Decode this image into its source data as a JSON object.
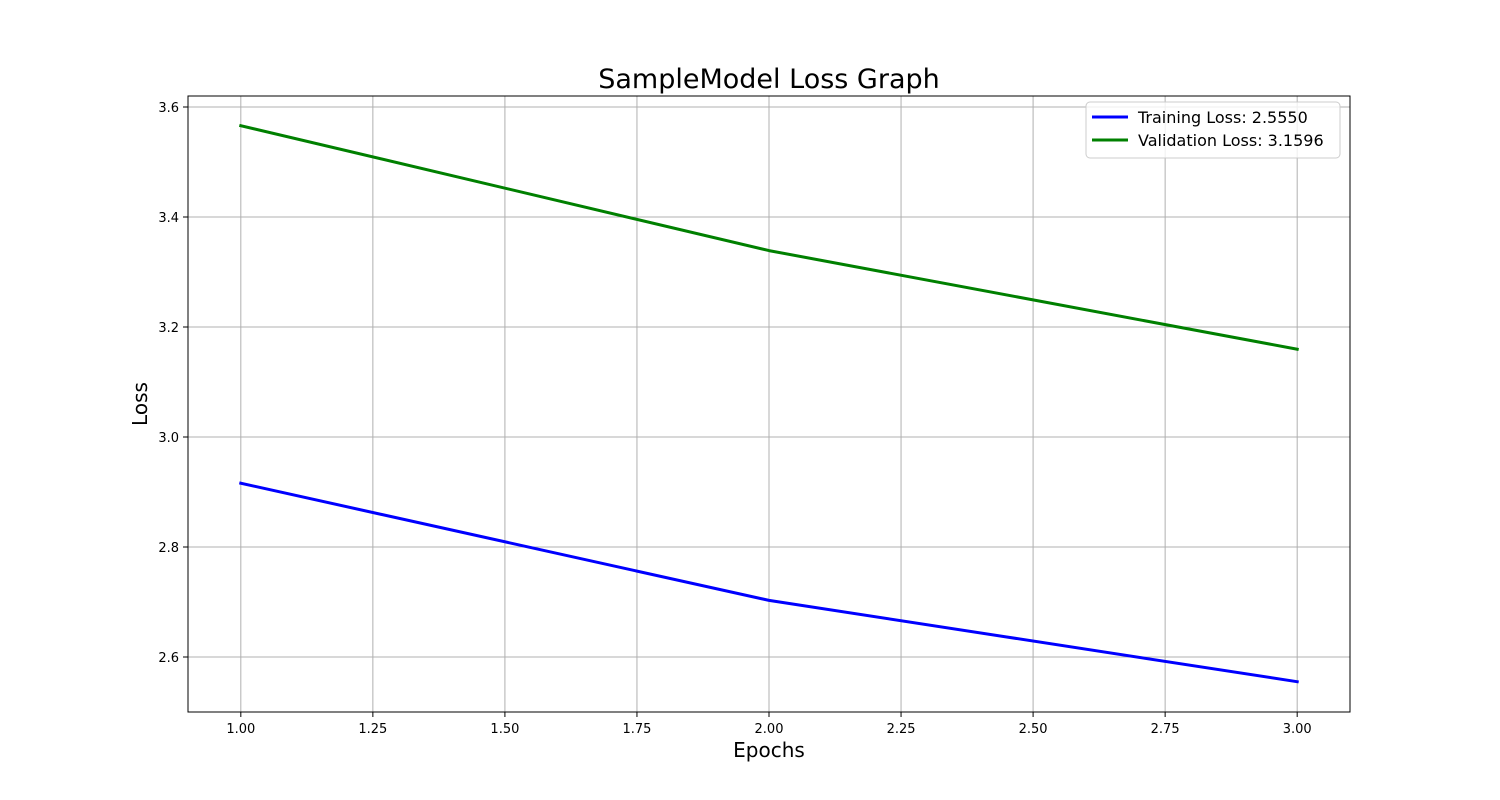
{
  "chart_data": {
    "type": "line",
    "title": "SampleModel Loss Graph",
    "xlabel": "Epochs",
    "ylabel": "Loss",
    "x": [
      1,
      2,
      3
    ],
    "xlim": [
      0.9,
      3.1
    ],
    "ylim": [
      2.5,
      3.62
    ],
    "xticks": [
      1.0,
      1.25,
      1.5,
      1.75,
      2.0,
      2.25,
      2.5,
      2.75,
      3.0
    ],
    "xtick_labels": [
      "1.00",
      "1.25",
      "1.50",
      "1.75",
      "2.00",
      "2.25",
      "2.50",
      "2.75",
      "3.00"
    ],
    "yticks": [
      2.6,
      2.8,
      3.0,
      3.2,
      3.4,
      3.6
    ],
    "ytick_labels": [
      "2.6",
      "2.8",
      "3.0",
      "3.2",
      "3.4",
      "3.6"
    ],
    "grid": true,
    "legend_position": "top-right",
    "series": [
      {
        "name": "Training Loss: 2.5550",
        "values": [
          2.916,
          2.703,
          2.555
        ],
        "color": "#0000ff"
      },
      {
        "name": "Validation Loss: 3.1596",
        "values": [
          3.566,
          3.339,
          3.1596
        ],
        "color": "#008000"
      }
    ]
  }
}
